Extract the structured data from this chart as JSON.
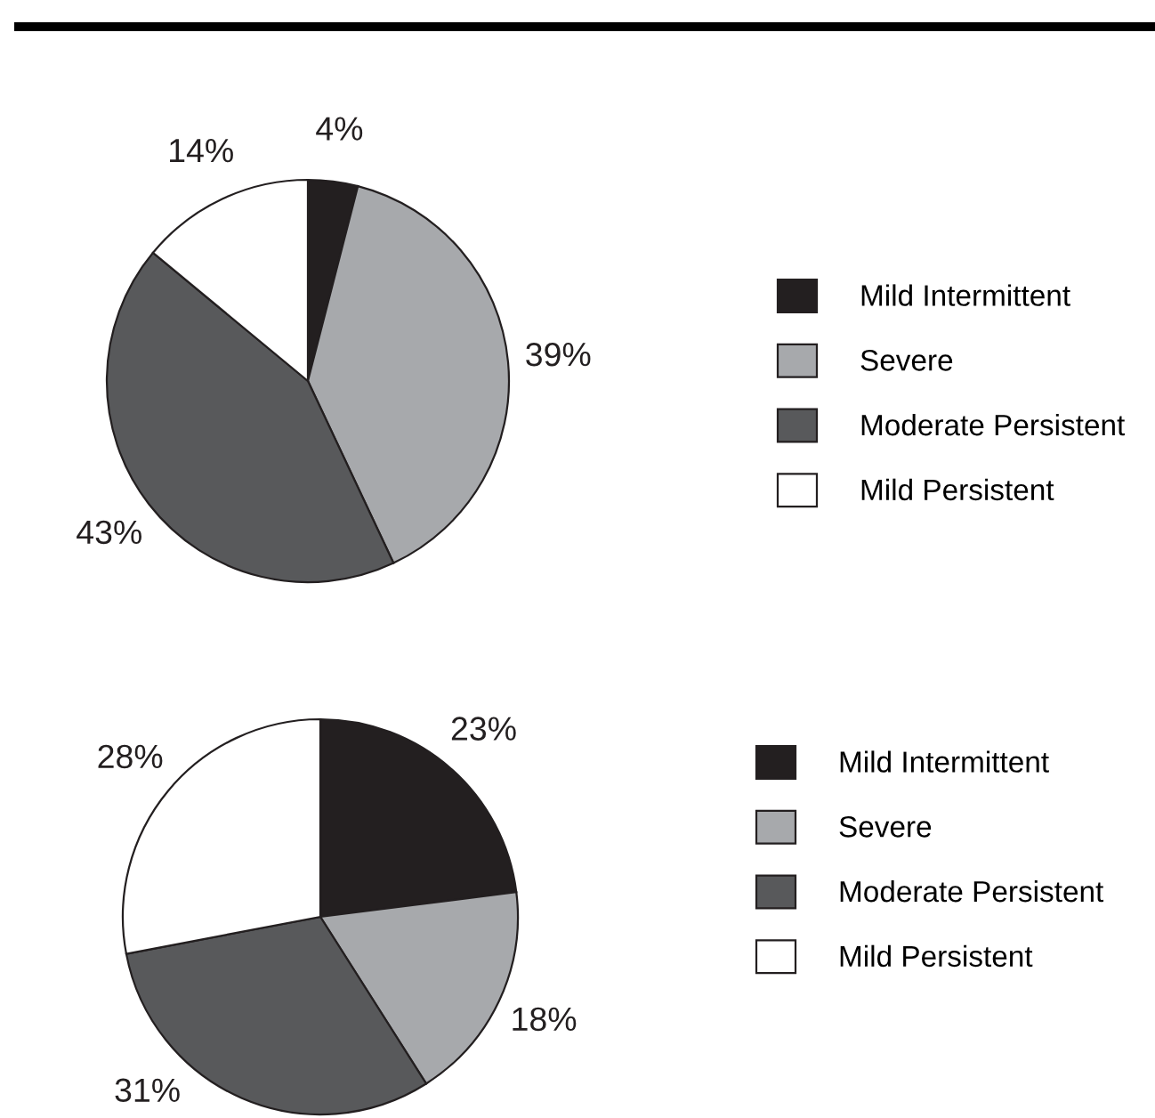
{
  "chart_data": [
    {
      "type": "pie",
      "categories": [
        "Mild Intermittent",
        "Severe",
        "Moderate Persistent",
        "Mild Persistent"
      ],
      "values": [
        4,
        39,
        43,
        14
      ],
      "colors": [
        "#231f20",
        "#a7a9ac",
        "#58595b",
        "#ffffff"
      ],
      "value_labels": [
        "4%",
        "39%",
        "43%",
        "14%"
      ],
      "legend": "right"
    },
    {
      "type": "pie",
      "categories": [
        "Mild Intermittent",
        "Severe",
        "Moderate Persistent",
        "Mild Persistent"
      ],
      "values": [
        23,
        18,
        31,
        28
      ],
      "colors": [
        "#231f20",
        "#a7a9ac",
        "#58595b",
        "#ffffff"
      ],
      "value_labels": [
        "23%",
        "18%",
        "31%",
        "28%"
      ],
      "legend": "right"
    }
  ]
}
